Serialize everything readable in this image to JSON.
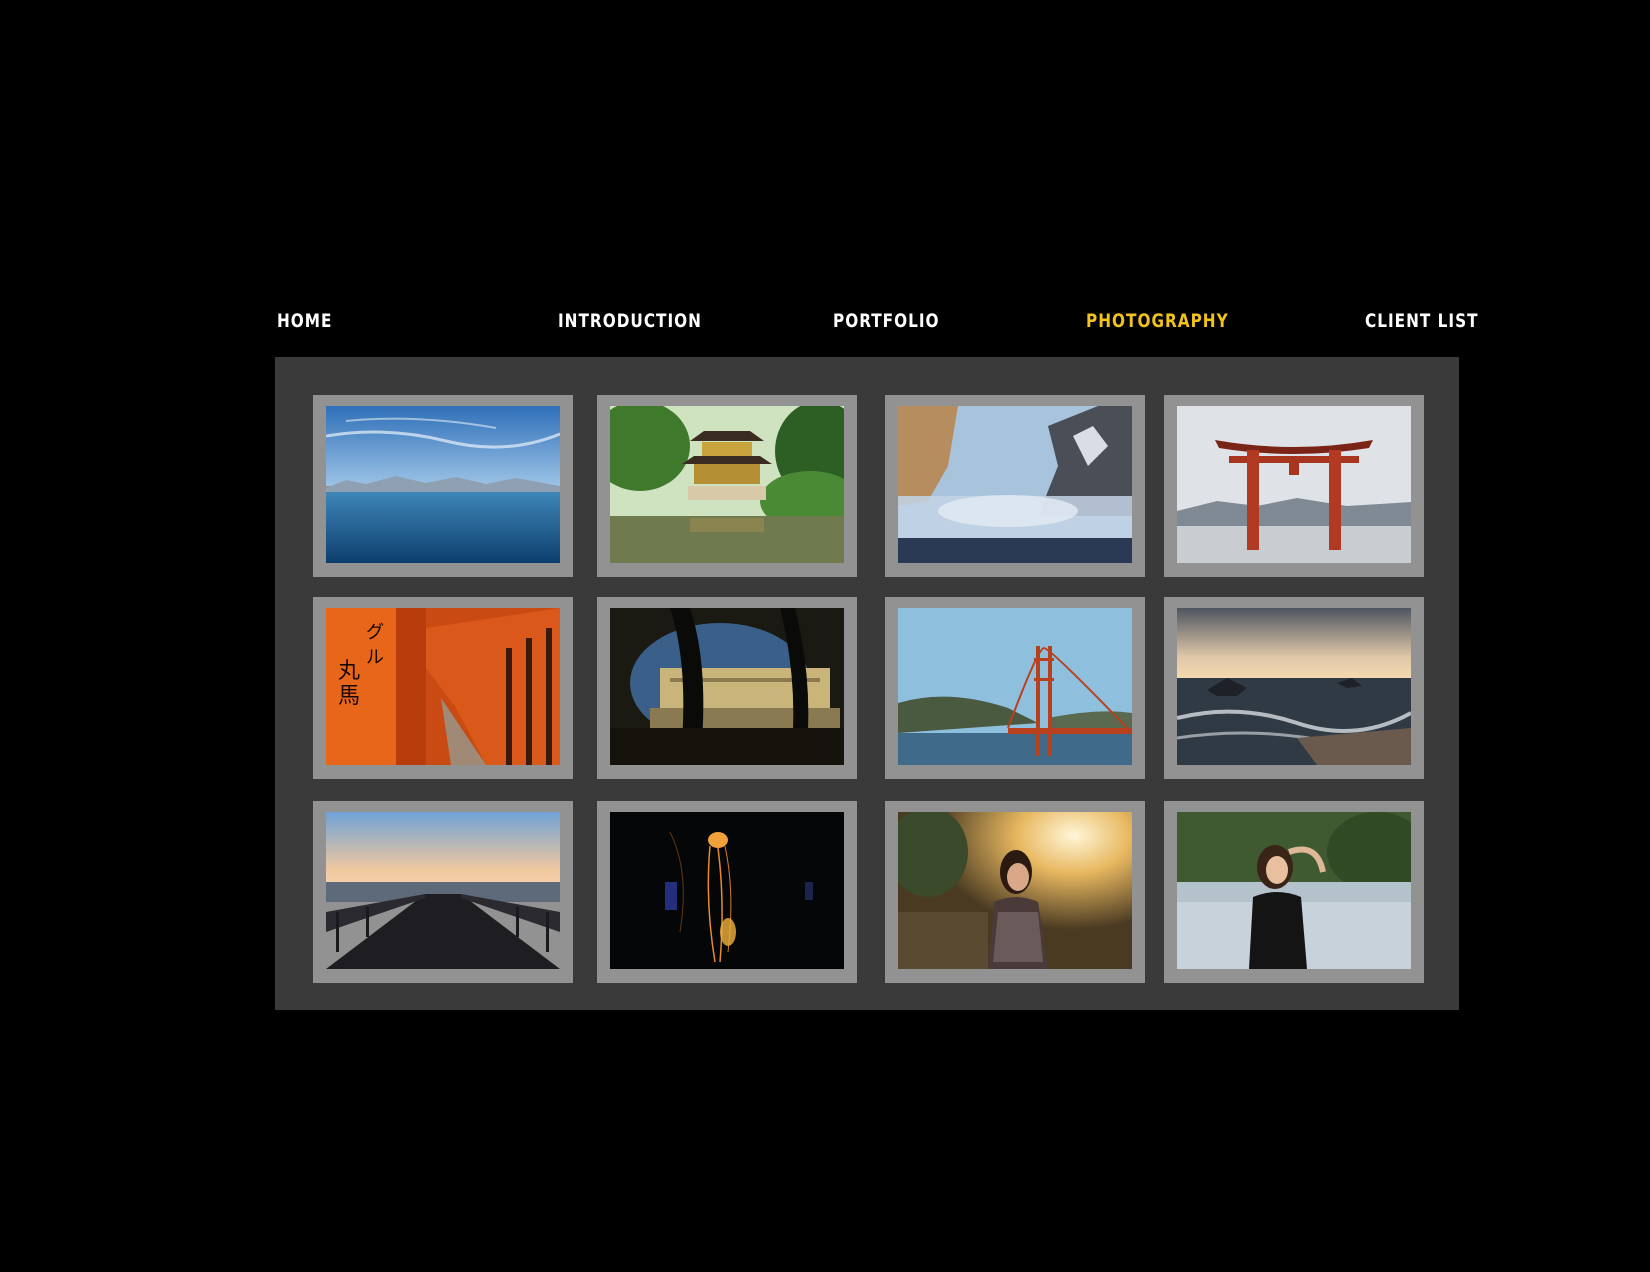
{
  "nav": {
    "items": [
      {
        "label": "HOME",
        "active": false
      },
      {
        "label": "INTRODUCTION",
        "active": false
      },
      {
        "label": "PORTFOLIO",
        "active": false
      },
      {
        "label": "PHOTOGRAPHY",
        "active": true
      },
      {
        "label": "CLIENT LIST",
        "active": false
      }
    ]
  },
  "colors": {
    "background": "#000000",
    "panel": "#3a3a3a",
    "frame": "#929292",
    "nav_text": "#ffffff",
    "nav_active": "#f2c21d"
  },
  "gallery": {
    "photos": [
      {
        "subject": "lake-mountains",
        "row": 1,
        "col": 1
      },
      {
        "subject": "golden-pavilion",
        "row": 1,
        "col": 2
      },
      {
        "subject": "misty-valley-cliffs",
        "row": 1,
        "col": 3
      },
      {
        "subject": "torii-gate-in-water",
        "row": 1,
        "col": 4
      },
      {
        "subject": "torii-tunnel",
        "row": 2,
        "col": 1
      },
      {
        "subject": "palace-through-gate",
        "row": 2,
        "col": 2
      },
      {
        "subject": "golden-gate-bridge",
        "row": 2,
        "col": 3
      },
      {
        "subject": "ocean-sunset-rocks",
        "row": 2,
        "col": 4
      },
      {
        "subject": "pier-at-dusk",
        "row": 3,
        "col": 1
      },
      {
        "subject": "jellyfish",
        "row": 3,
        "col": 2
      },
      {
        "subject": "woman-backlit-portrait",
        "row": 3,
        "col": 3
      },
      {
        "subject": "woman-portrait-outdoors",
        "row": 3,
        "col": 4
      }
    ]
  }
}
